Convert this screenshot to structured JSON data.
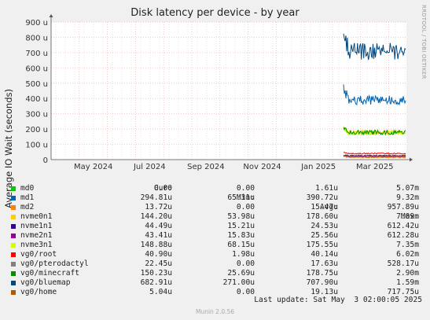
{
  "chart_data": {
    "type": "line",
    "title": "Disk latency per device - by year",
    "ylabel": "Average IO Wait (seconds)",
    "y_ticks": [
      "0",
      "100 u",
      "200 u",
      "300 u",
      "400 u",
      "500 u",
      "600 u",
      "700 u",
      "800 u",
      "900 u"
    ],
    "ylim": [
      0,
      900
    ],
    "y_unit": "u",
    "x_ticks": [
      "May 2024",
      "Jul 2024",
      "Sep 2024",
      "Nov 2024",
      "Jan 2025",
      "Mar 2025"
    ],
    "grid": true,
    "legend_headers": {
      "cur": "Cur:",
      "min": "Min:",
      "avg": "Avg:",
      "max": "Max:"
    },
    "series": [
      {
        "name": "md0",
        "color": "#00cc00",
        "cur": "0.00",
        "min": "0.00",
        "avg": "1.61u",
        "max": "5.07m",
        "level": 1
      },
      {
        "name": "md1",
        "color": "#0066b3",
        "cur": "294.81u",
        "min": "65.31u",
        "avg": "390.72u",
        "max": "9.32m",
        "level": 390
      },
      {
        "name": "md2",
        "color": "#ff8000",
        "cur": "13.72u",
        "min": "0.00",
        "avg": "15.47u",
        "max": "957.89u",
        "level": 15
      },
      {
        "name": "nvme0n1",
        "color": "#ffcc00",
        "cur": "144.20u",
        "min": "53.98u",
        "avg": "178.60u",
        "max": "7.09m",
        "level": 178
      },
      {
        "name": "nvme1n1",
        "color": "#330099",
        "cur": "44.49u",
        "min": "15.21u",
        "avg": "24.53u",
        "max": "612.42u",
        "level": 25
      },
      {
        "name": "nvme2n1",
        "color": "#990099",
        "cur": "43.41u",
        "min": "15.83u",
        "avg": "25.56u",
        "max": "612.28u",
        "level": 26
      },
      {
        "name": "nvme3n1",
        "color": "#ccff00",
        "cur": "148.88u",
        "min": "68.15u",
        "avg": "175.55u",
        "max": "7.35m",
        "level": 176
      },
      {
        "name": "vg0/root",
        "color": "#ff0000",
        "cur": "40.90u",
        "min": "1.98u",
        "avg": "40.14u",
        "max": "6.02m",
        "level": 40
      },
      {
        "name": "vg0/pterodactyl",
        "color": "#808080",
        "cur": "22.45u",
        "min": "0.00",
        "avg": "17.63u",
        "max": "528.17u",
        "level": 18
      },
      {
        "name": "vg0/minecraft",
        "color": "#008f00",
        "cur": "150.23u",
        "min": "25.69u",
        "avg": "178.75u",
        "max": "2.90m",
        "level": 178
      },
      {
        "name": "vg0/bluemap",
        "color": "#00487d",
        "cur": "682.91u",
        "min": "271.00u",
        "avg": "707.90u",
        "max": "1.59m",
        "level": 708
      },
      {
        "name": "vg0/home",
        "color": "#b35a00",
        "cur": "5.04u",
        "min": "0.00",
        "avg": "19.13u",
        "max": "717.75u",
        "level": 19
      }
    ]
  },
  "footer": {
    "last_update": "Last update: Sat May  3 02:00:05 2025"
  },
  "side_label": "RRDTOOL / TOBI OETIKER",
  "munin_version": "Munin 2.0.56"
}
